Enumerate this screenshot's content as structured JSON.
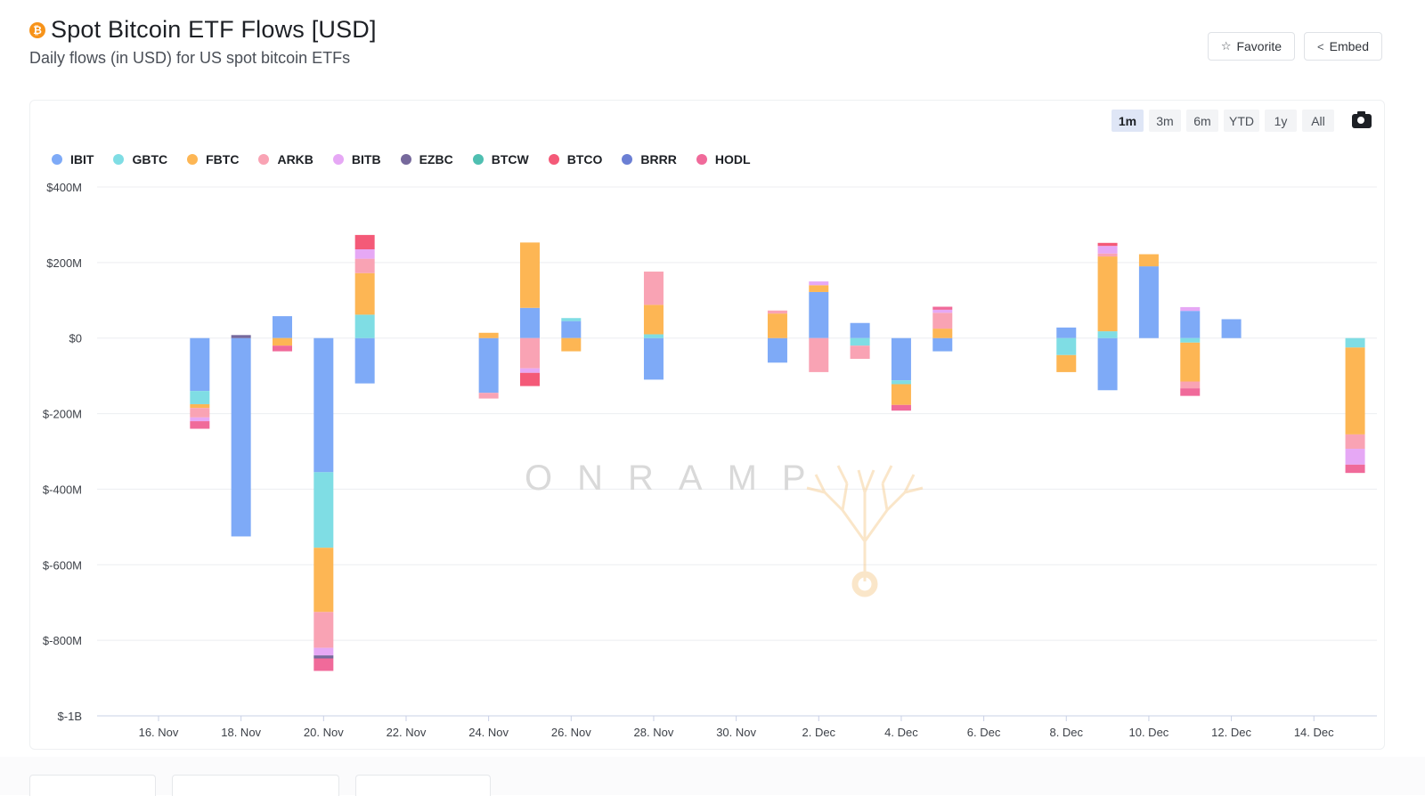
{
  "header": {
    "title": "Spot Bitcoin ETF Flows [USD]",
    "subtitle": "Daily flows (in USD) for US spot bitcoin ETFs",
    "icon": "bitcoin-icon"
  },
  "buttons": {
    "favorite": "Favorite",
    "embed": "Embed"
  },
  "range": {
    "options": [
      "1m",
      "3m",
      "6m",
      "YTD",
      "1y",
      "All"
    ],
    "selected": "1m"
  },
  "watermark": "ONRAMP",
  "colors": {
    "IBIT": "#7eaaf7",
    "GBTC": "#7fdde4",
    "FBTC": "#fdb654",
    "ARKB": "#f9a3b4",
    "BITB": "#e6a8f5",
    "EZBC": "#76699c",
    "BTCW": "#4fbfb1",
    "BTCO": "#f45a78",
    "BRRR": "#6b7fd4",
    "HODL": "#f06a9a"
  },
  "chart_data": {
    "type": "bar",
    "stacked": true,
    "ylabel": "",
    "xlabel": "",
    "ylim": [
      -1000,
      400
    ],
    "y_ticks": [
      400,
      200,
      0,
      -200,
      -400,
      -600,
      -800,
      -1000
    ],
    "y_tick_labels": [
      "$400M",
      "$200M",
      "$0",
      "$-200M",
      "$-400M",
      "$-600M",
      "$-800M",
      "$-1B"
    ],
    "x_ticks": [
      "2024-11-16",
      "2024-11-18",
      "2024-11-20",
      "2024-11-22",
      "2024-11-24",
      "2024-11-26",
      "2024-11-28",
      "2024-11-30",
      "2024-12-02",
      "2024-12-04",
      "2024-12-06",
      "2024-12-08",
      "2024-12-10",
      "2024-12-12",
      "2024-12-14"
    ],
    "x_tick_labels": [
      "16. Nov",
      "18. Nov",
      "20. Nov",
      "22. Nov",
      "24. Nov",
      "26. Nov",
      "28. Nov",
      "30. Nov",
      "2. Dec",
      "4. Dec",
      "6. Dec",
      "8. Dec",
      "10. Dec",
      "12. Dec",
      "14. Dec"
    ],
    "grid": true,
    "legend_position": "top-left",
    "series_names": [
      "IBIT",
      "GBTC",
      "FBTC",
      "ARKB",
      "BITB",
      "EZBC",
      "BTCW",
      "BTCO",
      "BRRR",
      "HODL"
    ],
    "bars": [
      {
        "date": "2024-11-17",
        "values": {
          "IBIT": -140,
          "GBTC": -35,
          "FBTC": -10,
          "ARKB": -25,
          "BITB": -10,
          "HODL": -20
        }
      },
      {
        "date": "2024-11-18",
        "values": {
          "IBIT": -525,
          "EZBC": 8
        }
      },
      {
        "date": "2024-11-19",
        "values": {
          "IBIT": 58,
          "FBTC": -20,
          "HODL": -15
        }
      },
      {
        "date": "2024-11-20",
        "values": {
          "IBIT": -355,
          "GBTC": -200,
          "FBTC": -170,
          "ARKB": -95,
          "BITB": -20,
          "EZBC": -8,
          "HODL": -33
        }
      },
      {
        "date": "2024-11-21",
        "values": {
          "IBIT": -120,
          "BTCO": 38,
          "BITB": 25,
          "ARKB": 38,
          "FBTC": 110,
          "GBTC": 62
        }
      },
      {
        "date": "2024-11-24",
        "values": {
          "IBIT": -145,
          "ARKB": -15,
          "FBTC": 14
        }
      },
      {
        "date": "2024-11-25",
        "values": {
          "IBIT": 80,
          "FBTC": 173,
          "BTCO": -35,
          "BITB": -12,
          "ARKB": -80
        }
      },
      {
        "date": "2024-11-26",
        "values": {
          "IBIT": 45,
          "GBTC": 8,
          "FBTC": -35
        }
      },
      {
        "date": "2024-11-28",
        "values": {
          "IBIT": -110,
          "ARKB": 88,
          "FBTC": 78,
          "GBTC": 10
        }
      },
      {
        "date": "2024-12-01",
        "values": {
          "IBIT": -65,
          "ARKB": 8,
          "FBTC": 65
        }
      },
      {
        "date": "2024-12-02",
        "values": {
          "IBIT": 122,
          "FBTC": 18,
          "BITB": 10,
          "ARKB": -90
        }
      },
      {
        "date": "2024-12-03",
        "values": {
          "IBIT": 40,
          "ARKB": -35,
          "GBTC": -20
        }
      },
      {
        "date": "2024-12-04",
        "values": {
          "IBIT": -112,
          "GBTC": -10,
          "FBTC": -55,
          "HODL": -15
        }
      },
      {
        "date": "2024-12-05",
        "values": {
          "IBIT": -35,
          "HODL": 8,
          "BITB": 8,
          "ARKB": 42,
          "FBTC": 25
        }
      },
      {
        "date": "2024-12-08",
        "values": {
          "IBIT": 28,
          "FBTC": -45,
          "GBTC": -45
        }
      },
      {
        "date": "2024-12-09",
        "values": {
          "IBIT": -138,
          "BTCO": 8,
          "BITB": 20,
          "ARKB": 8,
          "FBTC": 198,
          "GBTC": 18
        }
      },
      {
        "date": "2024-12-10",
        "values": {
          "IBIT": 190,
          "FBTC": 32
        }
      },
      {
        "date": "2024-12-11",
        "values": {
          "IBIT": 72,
          "BITB": 10,
          "HODL": -20,
          "ARKB": -18,
          "FBTC": -103,
          "GBTC": -12
        }
      },
      {
        "date": "2024-12-12",
        "values": {
          "IBIT": 50
        }
      },
      {
        "date": "2024-12-15",
        "values": {
          "HODL": -22,
          "BITB": -42,
          "ARKB": -38,
          "FBTC": -230,
          "GBTC": -25
        }
      }
    ]
  }
}
